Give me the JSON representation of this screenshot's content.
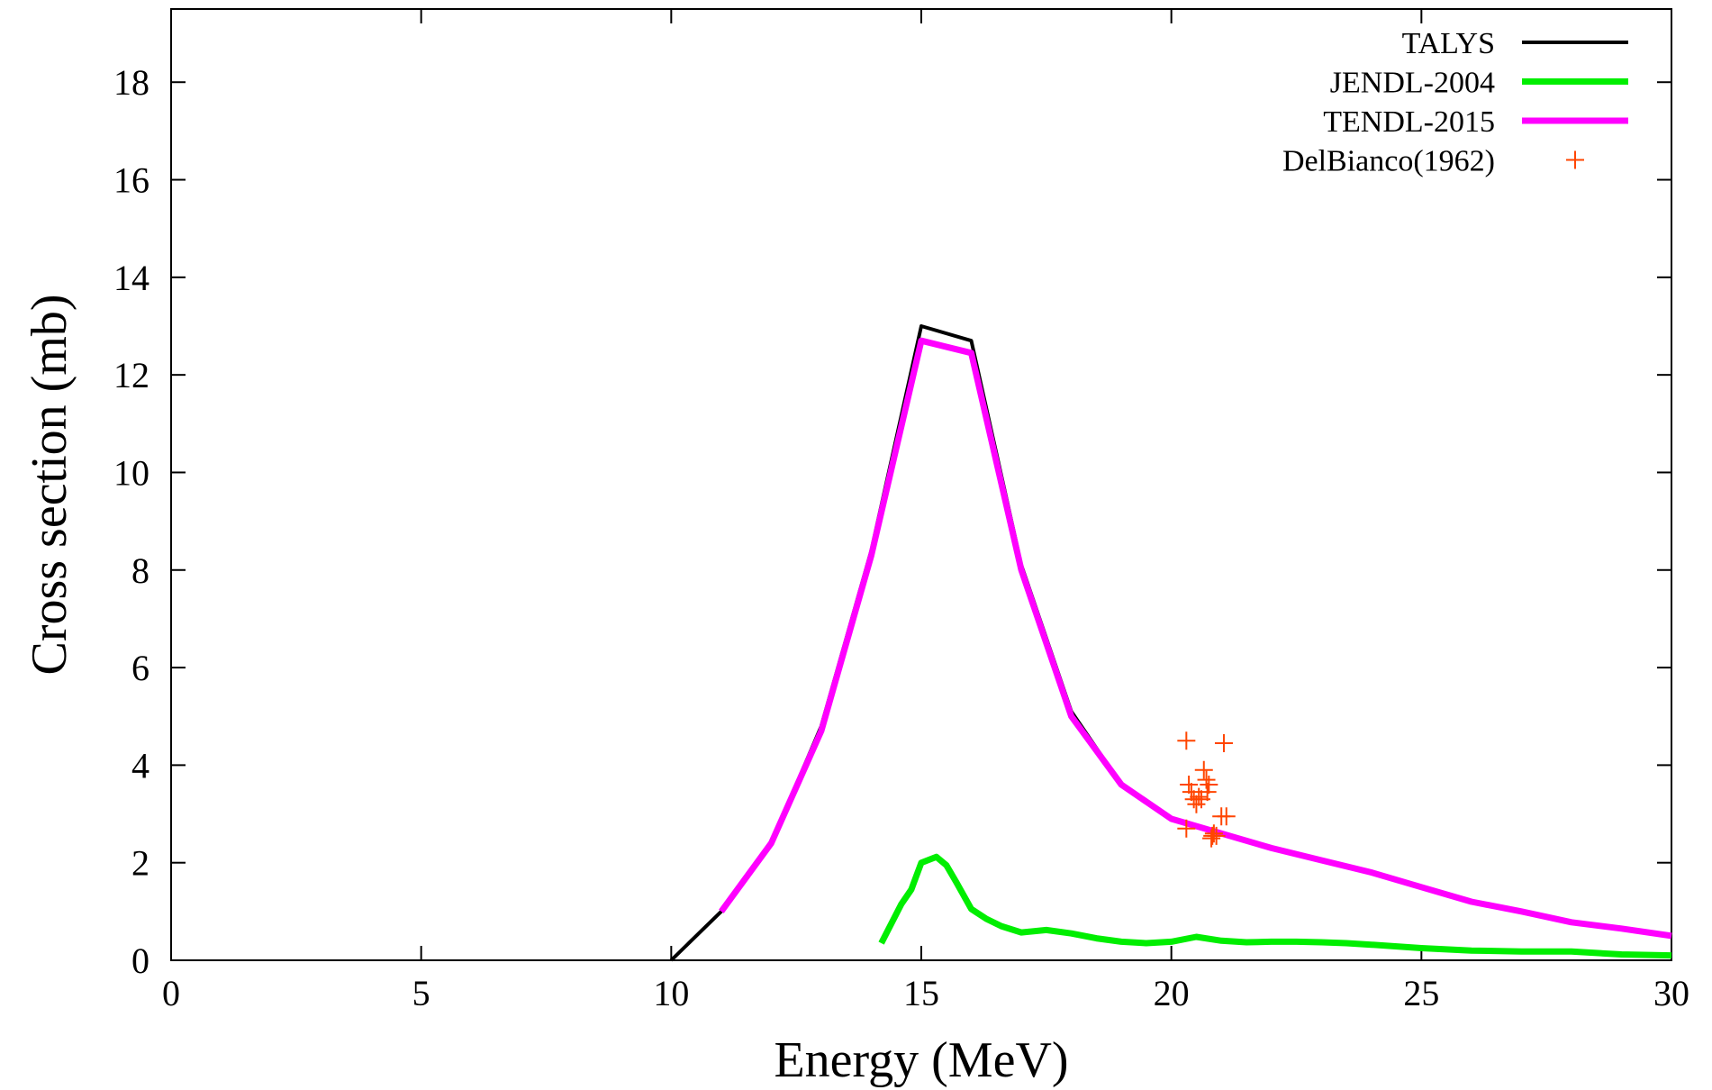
{
  "chart_data": {
    "type": "line",
    "xlabel": "Energy (MeV)",
    "ylabel": "Cross section (mb)",
    "xlim": [
      0,
      30
    ],
    "ylim": [
      0,
      19.5
    ],
    "xticks": [
      0,
      5,
      10,
      15,
      20,
      25,
      30
    ],
    "yticks": [
      0,
      2,
      4,
      6,
      8,
      10,
      12,
      14,
      16,
      18
    ],
    "grid": false,
    "legend_position": "top-right",
    "series": [
      {
        "name": "TALYS",
        "style": "line",
        "color": "#000000",
        "x": [
          10,
          11,
          12,
          13,
          14,
          15,
          16,
          17,
          18,
          19,
          20,
          21,
          22,
          23,
          24,
          25,
          26,
          27,
          28,
          29,
          30
        ],
        "y": [
          0,
          1.0,
          2.4,
          4.8,
          8.4,
          13.0,
          12.7,
          8.1,
          5.1,
          3.6,
          2.9,
          2.6,
          2.3,
          2.05,
          1.8,
          1.5,
          1.2,
          1.0,
          0.8,
          0.65,
          0.5
        ]
      },
      {
        "name": "JENDL-2004",
        "style": "line",
        "color": "#00ee00",
        "x": [
          14.2,
          14.6,
          14.8,
          15.0,
          15.3,
          15.5,
          15.7,
          16.0,
          16.3,
          16.6,
          17.0,
          17.5,
          18.0,
          18.5,
          19.0,
          19.5,
          20.0,
          20.5,
          21.0,
          21.5,
          22.0,
          22.5,
          23.0,
          23.5,
          24.0,
          25.0,
          26.0,
          27.0,
          28.0,
          29.0,
          30.0
        ],
        "y": [
          0.35,
          1.15,
          1.45,
          2.0,
          2.12,
          1.95,
          1.6,
          1.05,
          0.85,
          0.7,
          0.57,
          0.62,
          0.55,
          0.45,
          0.38,
          0.35,
          0.38,
          0.48,
          0.4,
          0.37,
          0.38,
          0.38,
          0.37,
          0.35,
          0.32,
          0.25,
          0.2,
          0.18,
          0.18,
          0.12,
          0.1
        ]
      },
      {
        "name": "TENDL-2015",
        "style": "line",
        "color": "#ff00ff",
        "x": [
          11,
          12,
          13,
          14,
          15,
          16,
          17,
          18,
          19,
          20,
          21,
          22,
          23,
          24,
          25,
          26,
          27,
          28,
          29,
          30
        ],
        "y": [
          1.0,
          2.4,
          4.7,
          8.3,
          12.7,
          12.45,
          8.0,
          5.0,
          3.6,
          2.9,
          2.6,
          2.3,
          2.05,
          1.8,
          1.5,
          1.2,
          1.0,
          0.78,
          0.65,
          0.5
        ]
      },
      {
        "name": "DelBianco(1962)",
        "style": "points",
        "color": "#ff4500",
        "x": [
          20.3,
          20.35,
          20.4,
          20.45,
          20.5,
          20.55,
          20.6,
          20.65,
          20.7,
          20.72,
          20.75,
          20.8,
          20.82,
          20.85,
          20.9,
          21.0,
          21.05,
          21.1,
          20.3
        ],
        "y": [
          4.5,
          3.6,
          3.45,
          3.3,
          3.2,
          3.35,
          3.3,
          3.9,
          3.7,
          3.45,
          3.6,
          2.5,
          2.55,
          2.6,
          2.55,
          2.95,
          4.45,
          2.95,
          2.7
        ]
      }
    ]
  }
}
